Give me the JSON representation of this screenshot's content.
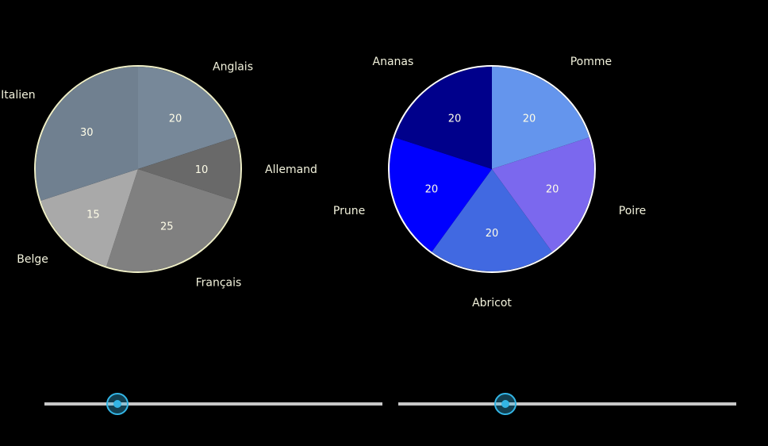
{
  "chart_data": [
    {
      "type": "pie",
      "title": "",
      "start_angle_deg": 0,
      "outline_color": "#f0f0c8",
      "slices": [
        {
          "label": "Anglais",
          "value": 20,
          "color": "#778899"
        },
        {
          "label": "Allemand",
          "value": 10,
          "color": "#696969"
        },
        {
          "label": "Français",
          "value": 25,
          "color": "#808080"
        },
        {
          "label": "Belge",
          "value": 15,
          "color": "#a9a9a9"
        },
        {
          "label": "Italien",
          "value": 30,
          "color": "#708090"
        }
      ]
    },
    {
      "type": "pie",
      "title": "",
      "start_angle_deg": 0,
      "outline_color": "#ffffff",
      "slices": [
        {
          "label": "Pomme",
          "value": 20,
          "color": "#6495ed"
        },
        {
          "label": "Poire",
          "value": 20,
          "color": "#7b68ee"
        },
        {
          "label": "Abricot",
          "value": 20,
          "color": "#4169e1"
        },
        {
          "label": "Prune",
          "value": 20,
          "color": "#0000ff"
        },
        {
          "label": "Ananas",
          "value": 20,
          "color": "#00008b"
        }
      ]
    }
  ],
  "sliders": [
    {
      "name": "left",
      "value": 0.215
    },
    {
      "name": "right",
      "value": 0.318
    }
  ]
}
